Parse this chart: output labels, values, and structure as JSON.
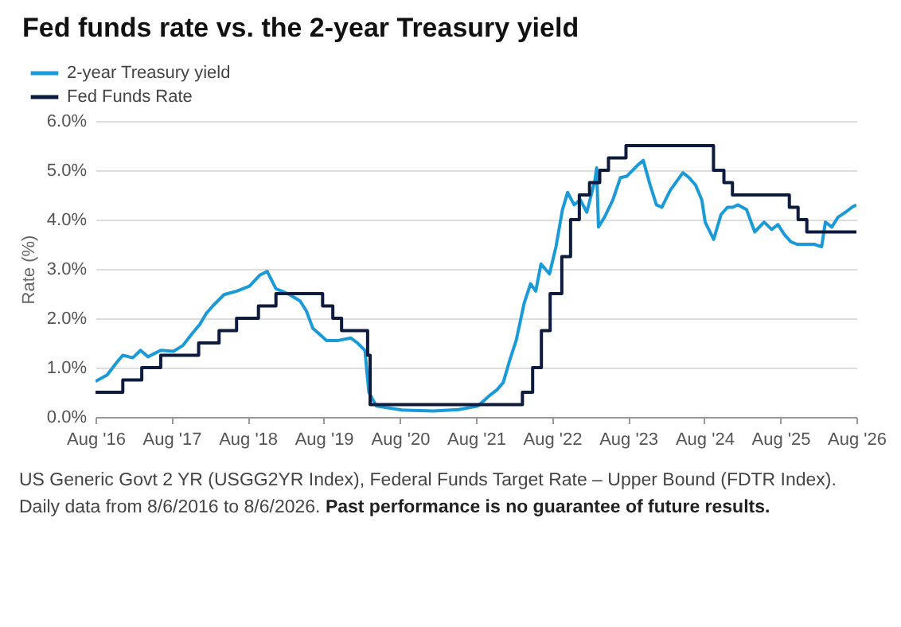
{
  "chart_data": {
    "type": "line",
    "title": "Fed funds rate vs. the 2-year Treasury yield",
    "ylabel": "Rate (%)",
    "annotations": [
      "US Generic Govt 2 YR (USGG2YR Index), Federal Funds Target Rate – Upper Bound (FDTR Index). Daily data from 8/6/2016 to 8/6/2026.",
      "Past performance is no guarantee of future results."
    ],
    "xlim": [
      "2016-08-06",
      "2026-08-06"
    ],
    "xticks": [
      {
        "value": "2016-08-06",
        "label": "Aug '16"
      },
      {
        "value": "2017-08-06",
        "label": "Aug '17"
      },
      {
        "value": "2018-08-06",
        "label": "Aug '18"
      },
      {
        "value": "2019-08-06",
        "label": "Aug '19"
      },
      {
        "value": "2020-08-06",
        "label": "Aug '20"
      },
      {
        "value": "2021-08-06",
        "label": "Aug '21"
      },
      {
        "value": "2022-08-06",
        "label": "Aug '22"
      },
      {
        "value": "2023-08-06",
        "label": "Aug '23"
      },
      {
        "value": "2024-08-06",
        "label": "Aug '24"
      },
      {
        "value": "2025-08-06",
        "label": "Aug '25"
      },
      {
        "value": "2026-08-06",
        "label": "Aug '26"
      }
    ],
    "ylim": [
      0,
      6
    ],
    "yticks": [
      {
        "value": 0,
        "label": "0.0%"
      },
      {
        "value": 1,
        "label": "1.0%"
      },
      {
        "value": 2,
        "label": "2.0%"
      },
      {
        "value": 3,
        "label": "3.0%"
      },
      {
        "value": 4,
        "label": "4.0%"
      },
      {
        "value": 5,
        "label": "5.0%"
      },
      {
        "value": 6,
        "label": "6.0%"
      }
    ],
    "grid": "y",
    "legend": "top left",
    "line_style": "solid",
    "series": [
      {
        "name": "2-year Treasury yield",
        "color": "#1b9ad8",
        "type": "line",
        "x": [
          "2016-08-06",
          "2016-10-01",
          "2016-11-15",
          "2016-12-15",
          "2017-02-01",
          "2017-03-10",
          "2017-04-15",
          "2017-06-15",
          "2017-08-15",
          "2017-09-30",
          "2017-11-15",
          "2017-12-20",
          "2018-01-20",
          "2018-02-20",
          "2018-04-15",
          "2018-06-15",
          "2018-08-15",
          "2018-10-05",
          "2018-11-08",
          "2018-12-20",
          "2019-02-15",
          "2019-04-15",
          "2019-05-15",
          "2019-06-15",
          "2019-08-20",
          "2019-10-15",
          "2019-12-15",
          "2020-01-15",
          "2020-02-20",
          "2020-03-10",
          "2020-04-15",
          "2020-08-15",
          "2021-01-15",
          "2021-05-15",
          "2021-08-15",
          "2021-10-15",
          "2021-11-15",
          "2021-12-15",
          "2022-01-15",
          "2022-02-15",
          "2022-03-25",
          "2022-04-25",
          "2022-05-20",
          "2022-06-14",
          "2022-07-25",
          "2022-08-25",
          "2022-09-25",
          "2022-10-20",
          "2022-11-20",
          "2022-12-20",
          "2023-01-20",
          "2023-02-28",
          "2023-03-08",
          "2023-03-17",
          "2023-04-15",
          "2023-05-25",
          "2023-06-30",
          "2023-07-31",
          "2023-09-20",
          "2023-10-18",
          "2023-11-20",
          "2023-12-20",
          "2024-01-15",
          "2024-02-25",
          "2024-04-25",
          "2024-05-25",
          "2024-06-25",
          "2024-07-25",
          "2024-08-10",
          "2024-09-20",
          "2024-10-25",
          "2024-11-25",
          "2024-12-20",
          "2025-01-15",
          "2025-02-25",
          "2025-04-05",
          "2025-05-20",
          "2025-06-25",
          "2025-07-25",
          "2025-08-25",
          "2025-09-25",
          "2025-10-25",
          "2025-12-15",
          "2026-01-15",
          "2026-02-20",
          "2026-03-10",
          "2026-04-10",
          "2026-05-10",
          "2026-06-15",
          "2026-07-15",
          "2026-08-06"
        ],
        "values": [
          0.72,
          0.85,
          1.1,
          1.25,
          1.2,
          1.35,
          1.22,
          1.35,
          1.33,
          1.45,
          1.7,
          1.88,
          2.1,
          2.25,
          2.48,
          2.55,
          2.65,
          2.88,
          2.95,
          2.6,
          2.5,
          2.35,
          2.15,
          1.8,
          1.55,
          1.55,
          1.6,
          1.5,
          1.35,
          0.5,
          0.22,
          0.14,
          0.12,
          0.15,
          0.22,
          0.45,
          0.55,
          0.7,
          1.15,
          1.55,
          2.3,
          2.7,
          2.55,
          3.1,
          2.9,
          3.45,
          4.2,
          4.55,
          4.3,
          4.4,
          4.15,
          4.8,
          5.05,
          3.85,
          4.05,
          4.4,
          4.85,
          4.88,
          5.1,
          5.2,
          4.7,
          4.3,
          4.25,
          4.6,
          4.95,
          4.85,
          4.7,
          4.4,
          3.95,
          3.6,
          4.1,
          4.25,
          4.25,
          4.3,
          4.2,
          3.75,
          3.95,
          3.8,
          3.9,
          3.7,
          3.55,
          3.5,
          3.5,
          3.5,
          3.45,
          3.95,
          3.85,
          4.05,
          4.15,
          4.25,
          4.3
        ]
      },
      {
        "name": "Fed Funds Rate",
        "color": "#0d1b3e",
        "type": "step",
        "x": [
          "2016-08-06",
          "2016-12-15",
          "2017-03-16",
          "2017-06-15",
          "2017-12-14",
          "2018-03-22",
          "2018-06-14",
          "2018-09-27",
          "2018-12-20",
          "2019-08-01",
          "2019-09-19",
          "2019-10-31",
          "2020-03-04",
          "2020-03-16",
          "2022-03-17",
          "2022-05-05",
          "2022-06-16",
          "2022-07-28",
          "2022-09-22",
          "2022-11-03",
          "2022-12-15",
          "2023-02-02",
          "2023-03-23",
          "2023-05-04",
          "2023-07-27",
          "2024-09-19",
          "2024-11-08",
          "2024-12-19",
          "2025-09-18",
          "2025-10-30",
          "2025-12-11",
          "2026-08-06"
        ],
        "values": [
          0.5,
          0.75,
          1.0,
          1.25,
          1.5,
          1.75,
          2.0,
          2.25,
          2.5,
          2.25,
          2.0,
          1.75,
          1.25,
          0.25,
          0.5,
          1.0,
          1.75,
          2.5,
          3.25,
          4.0,
          4.5,
          4.75,
          5.0,
          5.25,
          5.5,
          5.0,
          4.75,
          4.5,
          4.25,
          4.0,
          3.75,
          3.75
        ]
      }
    ]
  }
}
